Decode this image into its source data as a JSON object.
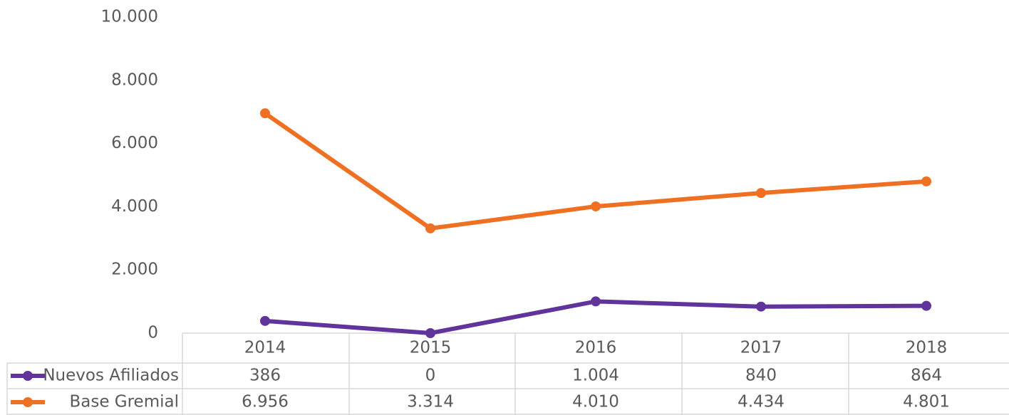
{
  "chart_data": {
    "type": "line",
    "categories": [
      "2014",
      "2015",
      "2016",
      "2017",
      "2018"
    ],
    "series": [
      {
        "name": "Nuevos Afiliados",
        "color": "#60349a",
        "values": [
          386,
          0,
          1004,
          840,
          864
        ],
        "value_labels": [
          "386",
          "0",
          "1.004",
          "840",
          "864"
        ]
      },
      {
        "name": "Base Gremial",
        "color": "#f07023",
        "values": [
          6956,
          3314,
          4010,
          4434,
          4801
        ],
        "value_labels": [
          "6.956",
          "3.314",
          "4.010",
          "4.434",
          "4.801"
        ]
      }
    ],
    "ylim": [
      0,
      10000
    ],
    "yticks": [
      0,
      {
        "value": 2000,
        "label": "2.000"
      },
      {
        "value": 4000,
        "label": "4.000"
      },
      {
        "value": 6000,
        "label": "6.000"
      },
      {
        "value": 8000,
        "label": "8.000"
      },
      {
        "value": 10000,
        "label": "10.000"
      }
    ],
    "grid": false
  }
}
